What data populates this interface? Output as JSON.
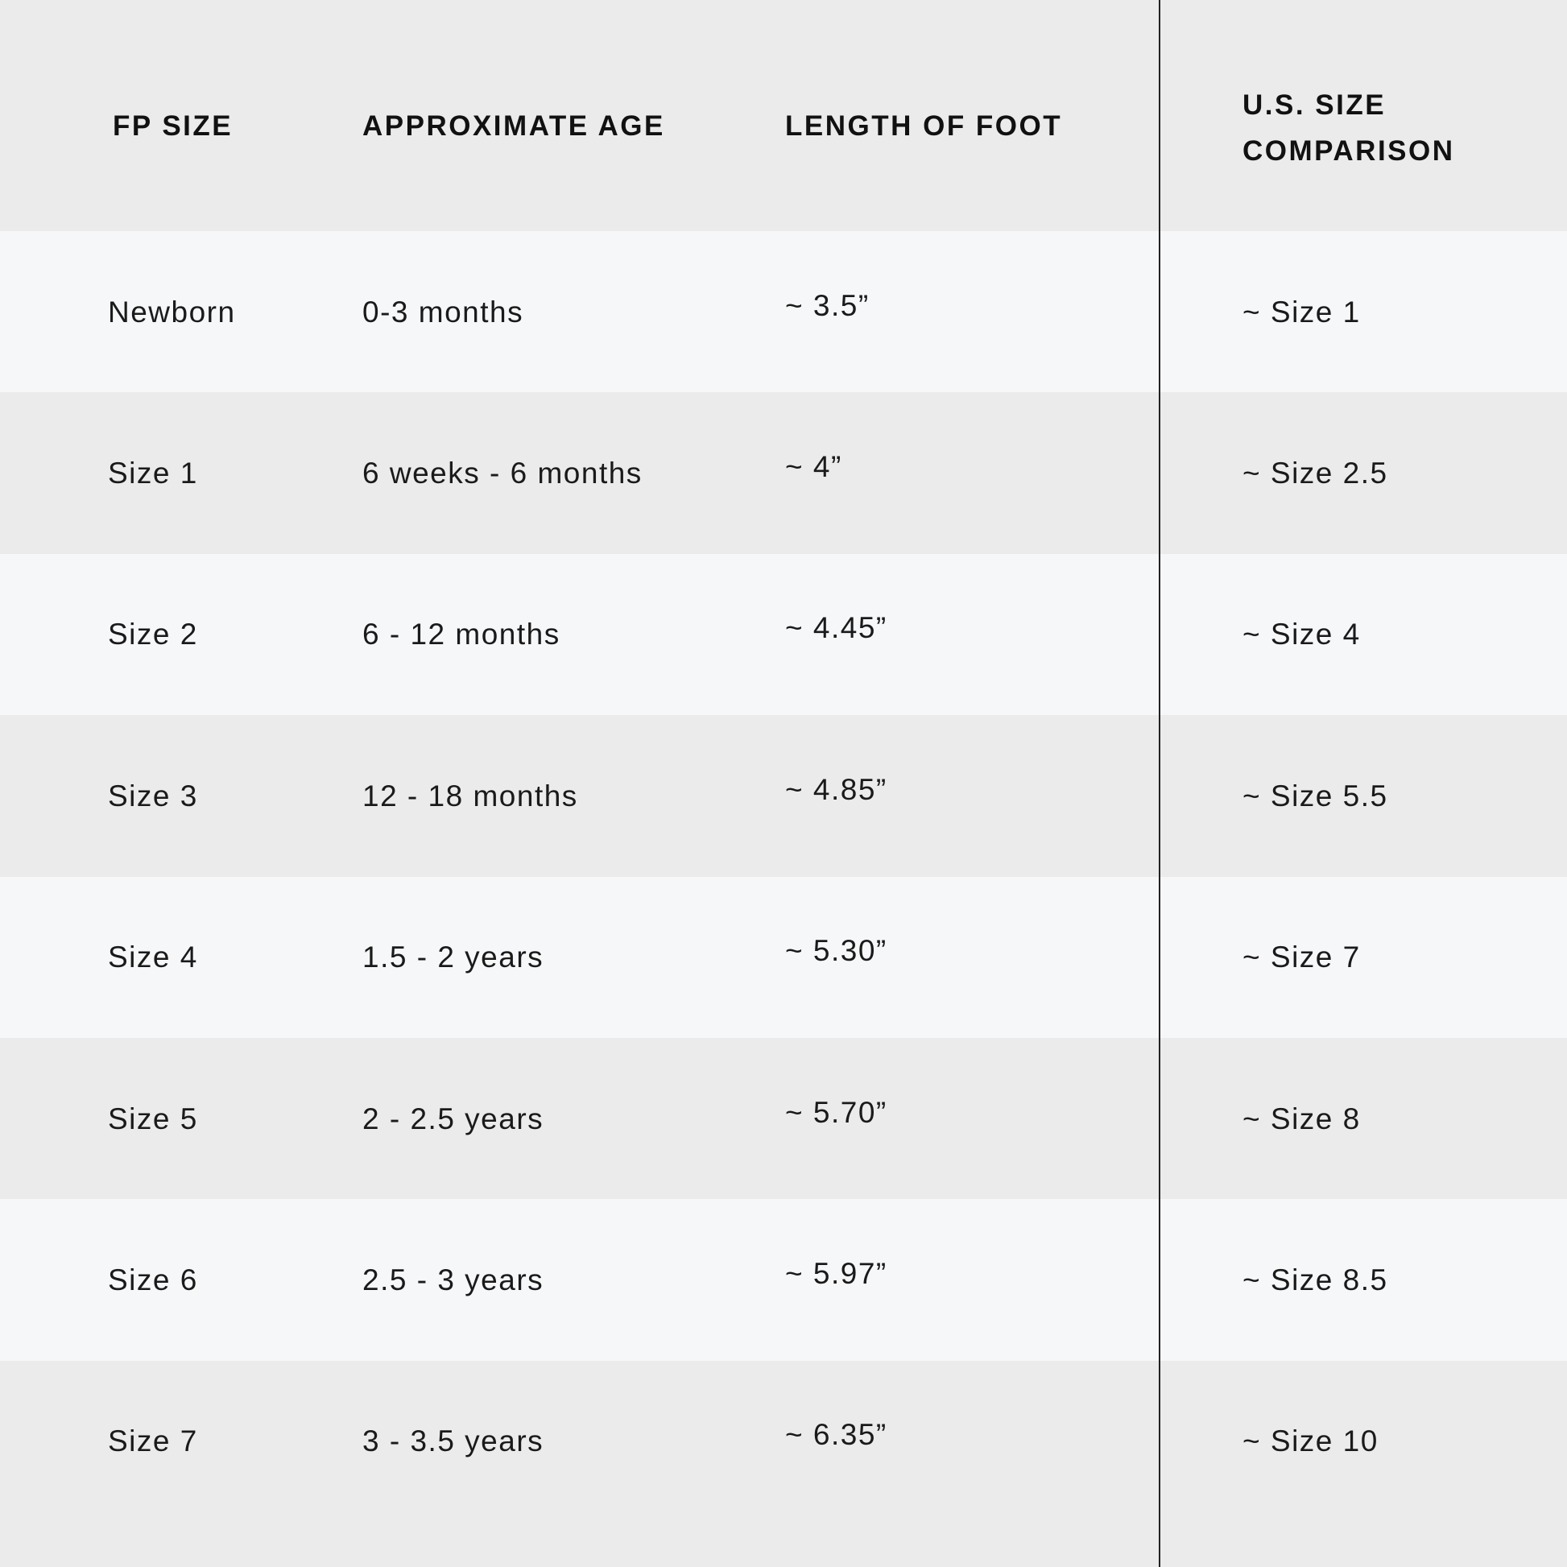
{
  "colors": {
    "header_bg": "#ebebeb",
    "row_light": "#f6f7f9",
    "row_dark": "#ebebeb",
    "text": "#111111",
    "divider": "#222222"
  },
  "table": {
    "headers": [
      "FP SIZE",
      "APPROXIMATE AGE",
      "LENGTH OF FOOT",
      "U.S. SIZE",
      "COMPARISON"
    ],
    "rows": [
      [
        "Newborn",
        "0-3 months",
        "~ 3.5”",
        "~ Size 1"
      ],
      [
        "Size 1",
        "6 weeks - 6 months",
        "~ 4”",
        "~ Size 2.5"
      ],
      [
        "Size 2",
        "6 - 12 months",
        "~ 4.45”",
        "~ Size 4"
      ],
      [
        "Size 3",
        "12 - 18 months",
        "~ 4.85”",
        "~ Size 5.5"
      ],
      [
        "Size 4",
        "1.5 - 2 years",
        "~ 5.30”",
        "~ Size 7"
      ],
      [
        "Size 5",
        "2 - 2.5 years",
        "~ 5.70”",
        "~ Size 8"
      ],
      [
        "Size 6",
        "2.5 - 3 years",
        "~ 5.97”",
        "~ Size 8.5"
      ],
      [
        "Size 7",
        "3 - 3.5 years",
        "~ 6.35”",
        "~ Size 10"
      ]
    ]
  }
}
